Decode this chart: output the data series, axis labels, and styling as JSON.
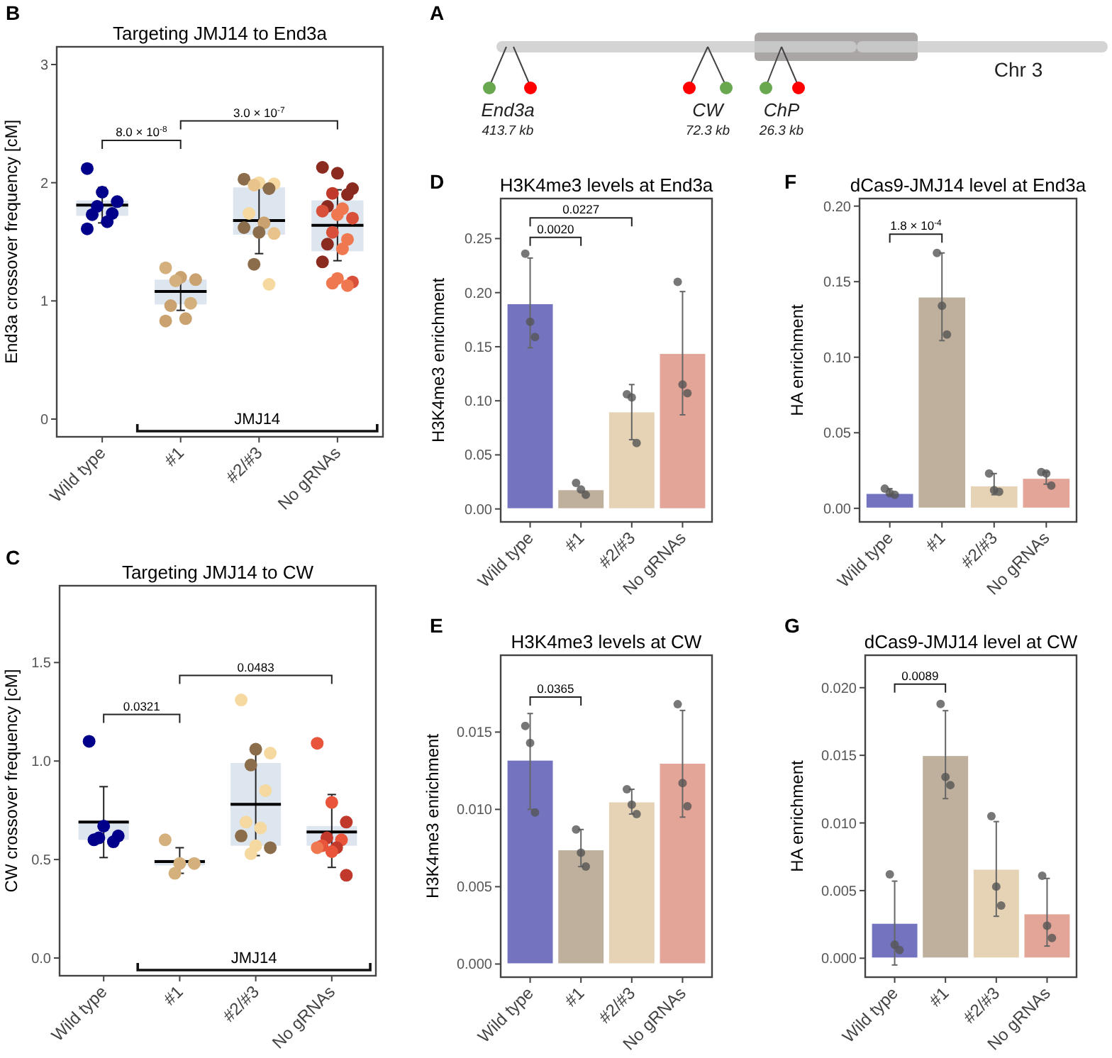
{
  "chart_data": [
    {
      "type": "box",
      "title": "Targeting JMJ14 to End3a",
      "ylabel": "End3a crossover frequency [cM]",
      "categories": [
        "Wild type",
        "#1",
        "#2/#3",
        "No gRNAs"
      ],
      "ylim": [
        -0.15,
        3.15
      ],
      "yticks": [
        0,
        1,
        2,
        3
      ],
      "annotations": [
        "B",
        "8.0 × 10$^{-8}$",
        "3.0 × 10$^{-7}$",
        "JMJ14"
      ],
      "series": [
        {
          "type": "box",
          "color": "#dde5ef",
          "boxes": [
            {
              "low": 1.66,
              "q1": 1.72,
              "median": 1.81,
              "q3": 1.85,
              "high": 1.96
            },
            {
              "low": 0.92,
              "q1": 0.97,
              "median": 1.08,
              "q3": 1.18,
              "high": 1.23
            },
            {
              "low": 1.4,
              "q1": 1.56,
              "median": 1.68,
              "q3": 1.96,
              "high": 1.96
            },
            {
              "low": 1.34,
              "q1": 1.42,
              "median": 1.64,
              "q3": 1.85,
              "high": 1.94
            }
          ]
        },
        {
          "type": "scatter",
          "x": [
            "Wild type",
            "Wild type",
            "Wild type",
            "Wild type",
            "Wild type",
            "Wild type",
            "Wild type",
            "Wild type",
            "#1",
            "#1",
            "#1",
            "#1",
            "#1",
            "#1",
            "#1",
            "#1",
            "#2/#3",
            "#2/#3",
            "#2/#3",
            "#2/#3",
            "#2/#3",
            "#2/#3",
            "#2/#3",
            "#2/#3",
            "#2/#3",
            "#2/#3",
            "#2/#3",
            "#2/#3",
            "No gRNAs",
            "No gRNAs",
            "No gRNAs",
            "No gRNAs",
            "No gRNAs",
            "No gRNAs",
            "No gRNAs",
            "No gRNAs",
            "No gRNAs",
            "No gRNAs",
            "No gRNAs",
            "No gRNAs",
            "No gRNAs",
            "No gRNAs",
            "No gRNAs",
            "No gRNAs",
            "No gRNAs",
            "No gRNAs",
            "No gRNAs"
          ],
          "values": [
            2.12,
            1.92,
            1.84,
            1.8,
            1.74,
            1.73,
            1.67,
            1.61,
            1.28,
            1.2,
            1.18,
            1.17,
            0.98,
            0.96,
            0.85,
            0.83,
            2.03,
            2.0,
            1.99,
            1.98,
            1.95,
            1.74,
            1.66,
            1.62,
            1.58,
            1.57,
            1.31,
            1.14,
            2.13,
            2.08,
            1.95,
            1.91,
            1.9,
            1.8,
            1.78,
            1.76,
            1.73,
            1.7,
            1.58,
            1.52,
            1.48,
            1.44,
            1.33,
            1.19,
            1.16,
            1.15,
            1.13
          ],
          "colors": [
            "#00008b",
            "#00008b",
            "#00008b",
            "#00008b",
            "#00008b",
            "#00008b",
            "#00008b",
            "#00008b",
            "#d4b07c",
            "#c9a26f",
            "#c9a26f",
            "#d4b07c",
            "#d4b07c",
            "#c9a26f",
            "#c9a26f",
            "#c9a26f",
            "#8b6d4b",
            "#f5d9a0",
            "#f5d9a0",
            "#e8c38c",
            "#8b6d4b",
            "#f5d9a0",
            "#c9a26f",
            "#8b6d4b",
            "#8b6d4b",
            "#e8c38c",
            "#8b6d4b",
            "#f5d9a0",
            "#8b2a1f",
            "#8b2a1f",
            "#8b2a1f",
            "#c0392b",
            "#8b2a1f",
            "#8b2a1f",
            "#f07850",
            "#d9503a",
            "#f07850",
            "#d9503a",
            "#d9503a",
            "#f07850",
            "#8b2a1f",
            "#f07850",
            "#8b2a1f",
            "#f07850",
            "#d9503a",
            "#f07850",
            "#f07850"
          ]
        }
      ]
    },
    {
      "type": "other",
      "annotations": [
        "A",
        "Chr 3",
        "End3a",
        "413.7 kb",
        "CW",
        "72.3 kb",
        "ChP",
        "26.3 kb"
      ]
    },
    {
      "type": "bar",
      "title": "H3K4me3 levels at End3a",
      "ylabel": "H3K4me3 enrichment",
      "categories": [
        "Wild type",
        "#1",
        "#2/#3",
        "No gRNAs"
      ],
      "ylim": [
        -0.012,
        0.287
      ],
      "yticks": [
        {
          "value": 0,
          "label": "0.00"
        },
        0.05,
        {
          "value": 0.1,
          "label": "0.10"
        },
        0.15,
        {
          "value": 0.2,
          "label": "0.20"
        },
        0.25
      ],
      "annotations": [
        "D",
        "0.0020",
        "0.0227"
      ],
      "series": [
        {
          "type": "bar",
          "colors": [
            "#7373c0",
            "#bfb09d",
            "#e6d2b5",
            "#e3a597"
          ],
          "values": [
            0.19,
            0.018,
            0.09,
            0.144
          ],
          "errors": [
            [
              0.149,
              0.232
            ],
            null,
            [
              0.064,
              0.115
            ],
            [
              0.087,
              0.201
            ]
          ]
        },
        {
          "type": "scatter",
          "color": "#555555",
          "x": [
            "Wild type",
            "Wild type",
            "Wild type",
            "#1",
            "#1",
            "#1",
            "#2/#3",
            "#2/#3",
            "#2/#3",
            "No gRNAs",
            "No gRNAs",
            "No gRNAs"
          ],
          "values": [
            0.236,
            0.173,
            0.159,
            0.024,
            0.018,
            0.013,
            0.106,
            0.103,
            0.061,
            0.21,
            0.115,
            0.107
          ]
        }
      ]
    },
    {
      "type": "bar",
      "title": "dCas9-JMJ14 level at End3a",
      "ylabel": "HA enrichment",
      "categories": [
        "Wild type",
        "#1",
        "#2/#3",
        "No gRNAs"
      ],
      "ylim": [
        -0.009,
        0.205
      ],
      "yticks": [
        {
          "value": 0,
          "label": "0.00"
        },
        0.05,
        {
          "value": 0.1,
          "label": "0.10"
        },
        0.15,
        {
          "value": 0.2,
          "label": "0.20"
        }
      ],
      "annotations": [
        "F",
        "1.8 × 10$^{-4}$"
      ],
      "series": [
        {
          "type": "bar",
          "colors": [
            "#7373c0",
            "#bfb09d",
            "#e6d2b5",
            "#e3a597"
          ],
          "values": [
            0.01,
            0.14,
            0.015,
            0.02
          ],
          "errors": [
            [
              0.009,
              0.013
            ],
            [
              0.111,
              0.169
            ],
            [
              0.009,
              0.023
            ],
            [
              0.016,
              0.024
            ]
          ]
        },
        {
          "type": "scatter",
          "color": "#555555",
          "x": [
            "Wild type",
            "Wild type",
            "Wild type",
            "#1",
            "#1",
            "#1",
            "#2/#3",
            "#2/#3",
            "#2/#3",
            "No gRNAs",
            "No gRNAs",
            "No gRNAs"
          ],
          "values": [
            0.013,
            0.01,
            0.009,
            0.169,
            0.134,
            0.115,
            0.023,
            0.012,
            0.011,
            0.024,
            0.023,
            0.015
          ]
        }
      ]
    },
    {
      "type": "box",
      "title": "Targeting JMJ14 to CW",
      "ylabel": "CW crossover frequency [cM]",
      "categories": [
        "Wild type",
        "#1",
        "#2/#3",
        "No gRNAs"
      ],
      "ylim": [
        -0.09,
        1.89
      ],
      "yticks": [
        {
          "value": 0,
          "label": "0.0"
        },
        0.5,
        {
          "value": 1,
          "label": "1.0"
        },
        1.5
      ],
      "annotations": [
        "C",
        "0.0321",
        "0.0483",
        "JMJ14"
      ],
      "series": [
        {
          "type": "box",
          "color": "#dde5ef",
          "boxes": [
            {
              "low": 0.51,
              "q1": 0.6,
              "median": 0.69,
              "q3": 0.69,
              "high": 0.87
            },
            {
              "low": 0.43,
              "q1": 0.47,
              "median": 0.49,
              "q3": 0.5,
              "high": 0.56
            },
            {
              "low": 0.52,
              "q1": 0.57,
              "median": 0.78,
              "q3": 0.99,
              "high": 1.04
            },
            {
              "low": 0.46,
              "q1": 0.57,
              "median": 0.64,
              "q3": 0.67,
              "high": 0.83
            }
          ]
        },
        {
          "type": "scatter",
          "x": [
            "Wild type",
            "Wild type",
            "Wild type",
            "Wild type",
            "Wild type",
            "Wild type",
            "#1",
            "#1",
            "#1",
            "#1",
            "#2/#3",
            "#2/#3",
            "#2/#3",
            "#2/#3",
            "#2/#3",
            "#2/#3",
            "#2/#3",
            "#2/#3",
            "#2/#3",
            "#2/#3",
            "#2/#3",
            "No gRNAs",
            "No gRNAs",
            "No gRNAs",
            "No gRNAs",
            "No gRNAs",
            "No gRNAs",
            "No gRNAs",
            "No gRNAs",
            "No gRNAs",
            "No gRNAs"
          ],
          "values": [
            1.1,
            0.67,
            0.62,
            0.61,
            0.59,
            0.6,
            0.6,
            0.48,
            0.48,
            0.43,
            1.31,
            1.06,
            1.04,
            0.98,
            0.85,
            0.69,
            0.66,
            0.62,
            0.57,
            0.56,
            0.53,
            1.09,
            0.79,
            0.69,
            0.61,
            0.6,
            0.57,
            0.56,
            0.56,
            0.54,
            0.42
          ],
          "colors": [
            "#00008b",
            "#00008b",
            "#00008b",
            "#00008b",
            "#00008b",
            "#00008b",
            "#d4b07c",
            "#d4b07c",
            "#d4b07c",
            "#d4b07c",
            "#f5d9a0",
            "#8b6d4b",
            "#f5d9a0",
            "#8b6d4b",
            "#f5d9a0",
            "#f5d9a0",
            "#f5d9a0",
            "#8b6d4b",
            "#f5d9a0",
            "#8b6d4b",
            "#f5d9a0",
            "#e8553a",
            "#e8553a",
            "#c0392b",
            "#c0392b",
            "#e8553a",
            "#e8553a",
            "#c0392b",
            "#f07850",
            "#e8553a",
            "#c0392b"
          ]
        }
      ]
    },
    {
      "type": "bar",
      "title": "H3K4me3 levels at CW",
      "ylabel": "H3K4me3 enrichment",
      "categories": [
        "Wild type",
        "#1",
        "#2/#3",
        "No gRNAs"
      ],
      "ylim": [
        -0.00085,
        0.01997
      ],
      "yticks": [
        {
          "value": 0,
          "label": "0.000"
        },
        0.005,
        {
          "value": 0.01,
          "label": "0.010"
        },
        0.015
      ],
      "annotations": [
        "E",
        "0.0365"
      ],
      "series": [
        {
          "type": "bar",
          "colors": [
            "#7373c0",
            "#bfb09d",
            "#e6d2b5",
            "#e3a597"
          ],
          "values": [
            0.0132,
            0.0074,
            0.0105,
            0.013
          ],
          "errors": [
            [
              0.01,
              0.0162
            ],
            [
              0.0063,
              0.0087
            ],
            [
              0.0097,
              0.0113
            ],
            [
              0.0095,
              0.0164
            ]
          ]
        },
        {
          "type": "scatter",
          "color": "#555555",
          "x": [
            "Wild type",
            "Wild type",
            "Wild type",
            "#1",
            "#1",
            "#1",
            "#2/#3",
            "#2/#3",
            "#2/#3",
            "No gRNAs",
            "No gRNAs",
            "No gRNAs"
          ],
          "values": [
            0.0154,
            0.0143,
            0.0098,
            0.0087,
            0.0072,
            0.0063,
            0.0113,
            0.0103,
            0.0097,
            0.0168,
            0.0117,
            0.0102
          ]
        }
      ]
    },
    {
      "type": "bar",
      "title": "dCas9-JMJ14 level at CW",
      "ylabel": "HA enrichment",
      "categories": [
        "Wild type",
        "#1",
        "#2/#3",
        "No gRNAs"
      ],
      "ylim": [
        -0.0014,
        0.0224
      ],
      "yticks": [
        {
          "value": 0,
          "label": "0.000"
        },
        0.005,
        {
          "value": 0.01,
          "label": "0.010"
        },
        0.015,
        {
          "value": 0.02,
          "label": "0.020"
        }
      ],
      "annotations": [
        "G",
        "0.0089"
      ],
      "series": [
        {
          "type": "bar",
          "colors": [
            "#7373c0",
            "#bfb09d",
            "#e6d2b5",
            "#e3a597"
          ],
          "values": [
            0.0026,
            0.015,
            0.0066,
            0.0033
          ],
          "errors": [
            [
              -0.0005,
              0.0057
            ],
            [
              0.0118,
              0.0183
            ],
            [
              0.0031,
              0.0101
            ],
            [
              0.0009,
              0.0059
            ]
          ]
        },
        {
          "type": "scatter",
          "color": "#555555",
          "x": [
            "Wild type",
            "Wild type",
            "Wild type",
            "#1",
            "#1",
            "#1",
            "#2/#3",
            "#2/#3",
            "#2/#3",
            "No gRNAs",
            "No gRNAs",
            "No gRNAs"
          ],
          "values": [
            0.0062,
            0.001,
            0.0006,
            0.0188,
            0.0134,
            0.0128,
            0.0105,
            0.0053,
            0.0039,
            0.0061,
            0.0024,
            0.0015
          ]
        }
      ]
    }
  ]
}
